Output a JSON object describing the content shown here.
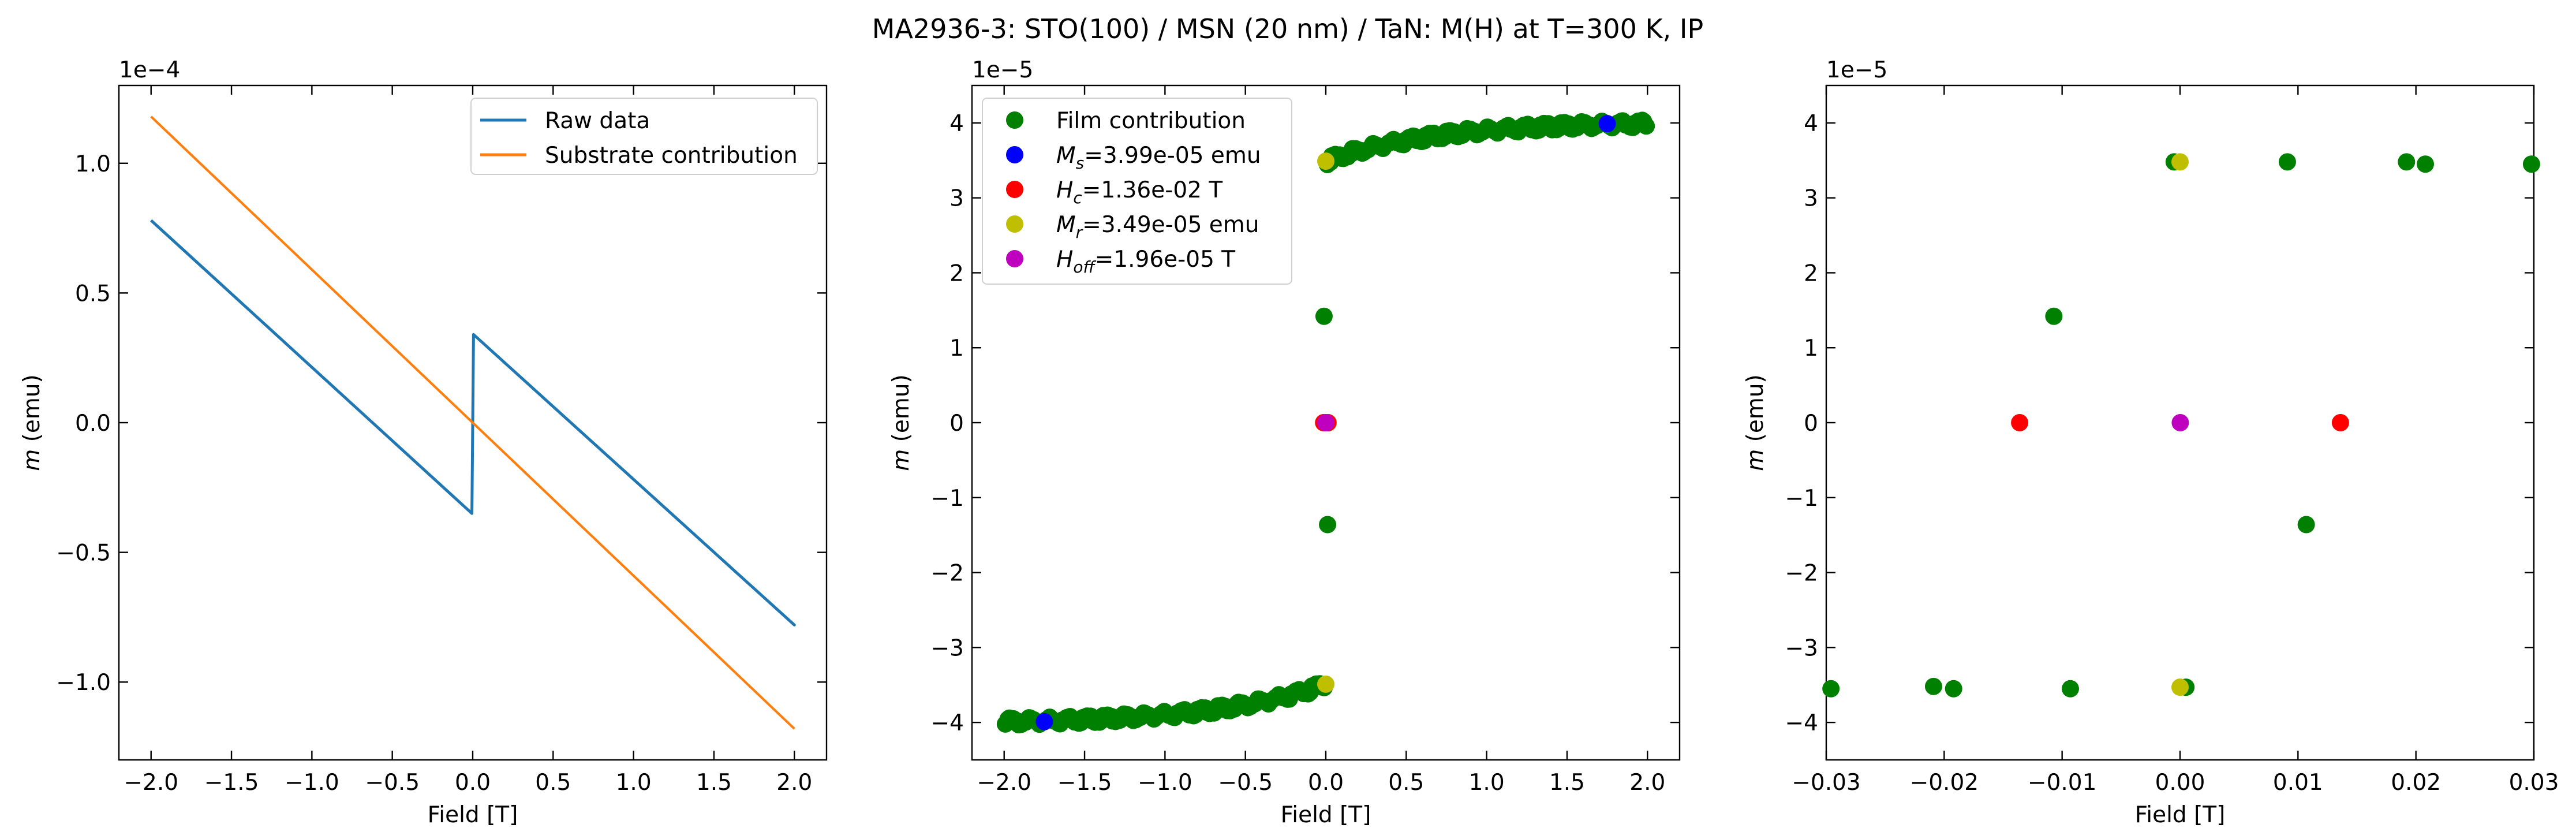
{
  "suptitle": "MA2936-3: STO(100)  / MSN (20 nm) / TaN: M(H) at T=300 K, IP",
  "colors": {
    "raw": "#1f77b4",
    "substrate": "#ff7f0e",
    "film": "#008000",
    "ms": "#0000ff",
    "hc": "#ff0000",
    "mr": "#bfbf00",
    "hoff": "#bf00bf"
  },
  "chart_data": [
    {
      "type": "line",
      "xlabel": "Field [T]",
      "ylabel": "m (emu)",
      "offset_text": "1e−4",
      "xlim": [
        -2.2,
        2.2
      ],
      "ylim": [
        -1.3,
        1.3
      ],
      "xticks": [
        -2.0,
        -1.5,
        -1.0,
        -0.5,
        0.0,
        0.5,
        1.0,
        1.5,
        2.0
      ],
      "xticklabels": [
        "−2.0",
        "−1.5",
        "−1.0",
        "−0.5",
        "0.0",
        "0.5",
        "1.0",
        "1.5",
        "2.0"
      ],
      "yticks": [
        -1.0,
        -0.5,
        0.0,
        0.5,
        1.0
      ],
      "yticklabels": [
        "−1.0",
        "−0.5",
        "0.0",
        "0.5",
        "1.0"
      ],
      "legend": {
        "position": "upper right"
      },
      "series": [
        {
          "name": "Raw data",
          "color_key": "raw",
          "kind": "line",
          "x": [
            -2.0,
            -0.005,
            0.005,
            2.0,
            0.005,
            -0.005,
            -2.0
          ],
          "y": [
            0.78,
            -0.35,
            0.34,
            -0.78,
            0.34,
            -0.35,
            0.78
          ]
        },
        {
          "name": "Substrate contribution",
          "color_key": "substrate",
          "kind": "line",
          "x": [
            -2.0,
            2.0
          ],
          "y": [
            1.18,
            -1.18
          ]
        }
      ]
    },
    {
      "type": "scatter",
      "xlabel": "Field [T]",
      "ylabel": "m (emu)",
      "offset_text": "1e−5",
      "xlim": [
        -2.2,
        2.2
      ],
      "ylim": [
        -4.5,
        4.5
      ],
      "xticks": [
        -2.0,
        -1.5,
        -1.0,
        -0.5,
        0.0,
        0.5,
        1.0,
        1.5,
        2.0
      ],
      "xticklabels": [
        "−2.0",
        "−1.5",
        "−1.0",
        "−0.5",
        "0.0",
        "0.5",
        "1.0",
        "1.5",
        "2.0"
      ],
      "yticks": [
        -4,
        -3,
        -2,
        -1,
        0,
        1,
        2,
        3,
        4
      ],
      "yticklabels": [
        "−4",
        "−3",
        "−2",
        "−1",
        "0",
        "1",
        "2",
        "3",
        "4"
      ],
      "legend": {
        "position": "upper left"
      },
      "series": [
        {
          "name": "Film contribution",
          "color_key": "film",
          "kind": "scatter",
          "curves": [
            {
              "x_from": 0.005,
              "x_to": 2.0,
              "y_at_start": 3.49,
              "y_at_end": 3.99,
              "shape": "saturating"
            },
            {
              "x_from": -2.0,
              "x_to": -0.005,
              "y_at_start": -3.99,
              "y_at_end": -3.49,
              "shape": "saturating"
            }
          ],
          "x": [
            -0.011,
            0.011
          ],
          "y": [
            1.42,
            -1.36
          ]
        },
        {
          "name": "M_s=3.99e-05 emu",
          "color_key": "ms",
          "kind": "scatter",
          "label_parts": {
            "sym": "M",
            "sub": "s",
            "rest": "=3.99e-05 emu"
          },
          "x": [
            1.75,
            -1.75
          ],
          "y": [
            3.99,
            -3.99
          ]
        },
        {
          "name": "H_c=1.36e-02 T",
          "color_key": "hc",
          "kind": "scatter",
          "label_parts": {
            "sym": "H",
            "sub": "c",
            "rest": "=1.36e-02 T"
          },
          "x": [
            -0.0136,
            0.0136
          ],
          "y": [
            0,
            0
          ]
        },
        {
          "name": "M_r=3.49e-05 emu",
          "color_key": "mr",
          "kind": "scatter",
          "label_parts": {
            "sym": "M",
            "sub": "r",
            "rest": "=3.49e-05 emu"
          },
          "x": [
            0.0,
            0.0
          ],
          "y": [
            3.49,
            -3.49
          ]
        },
        {
          "name": "H_off=1.96e-05 T",
          "color_key": "hoff",
          "kind": "scatter",
          "label_parts": {
            "sym": "H",
            "sub": "off",
            "rest": "=1.96e-05 T"
          },
          "x": [
            1.96e-05
          ],
          "y": [
            0
          ]
        }
      ]
    },
    {
      "type": "scatter",
      "xlabel": "Field [T]",
      "ylabel": "m (emu)",
      "offset_text": "1e−5",
      "xlim": [
        -0.03,
        0.03
      ],
      "ylim": [
        -4.5,
        4.5
      ],
      "xticks": [
        -0.03,
        -0.02,
        -0.01,
        0.0,
        0.01,
        0.02,
        0.03
      ],
      "xticklabels": [
        "−0.03",
        "−0.02",
        "−0.01",
        "0.00",
        "0.01",
        "0.02",
        "0.03"
      ],
      "yticks": [
        -4,
        -3,
        -2,
        -1,
        0,
        1,
        2,
        3,
        4
      ],
      "yticklabels": [
        "−4",
        "−3",
        "−2",
        "−1",
        "0",
        "1",
        "2",
        "3",
        "4"
      ],
      "series": [
        {
          "name": "Film contribution",
          "color_key": "film",
          "kind": "scatter",
          "x": [
            -0.0005,
            0.0091,
            0.0192,
            0.0208,
            0.0298,
            -0.0107,
            0.0107,
            0.0005,
            -0.0093,
            -0.0192,
            -0.0209,
            -0.0296
          ],
          "y": [
            3.48,
            3.48,
            3.48,
            3.45,
            3.45,
            1.42,
            -1.36,
            -3.53,
            -3.55,
            -3.55,
            -3.52,
            -3.55
          ]
        },
        {
          "name": "H_c",
          "color_key": "hc",
          "kind": "scatter",
          "x": [
            -0.0136,
            0.0136
          ],
          "y": [
            0,
            0
          ]
        },
        {
          "name": "M_r",
          "color_key": "mr",
          "kind": "scatter",
          "x": [
            0.0,
            0.0
          ],
          "y": [
            3.48,
            -3.53
          ]
        },
        {
          "name": "H_off",
          "color_key": "hoff",
          "kind": "scatter",
          "x": [
            1.96e-05
          ],
          "y": [
            0
          ]
        }
      ]
    }
  ]
}
